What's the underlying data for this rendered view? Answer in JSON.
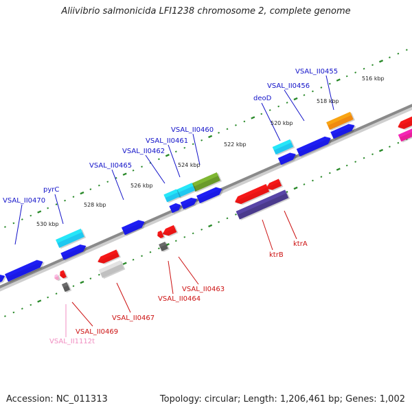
{
  "title": "Aliivibrio salmonicida LFI1238 chromosome 2, complete genome",
  "footer": {
    "accession": "Accession: NC_011313",
    "summary": "Topology: circular; Length: 1,206,461 bp; Genes: 1,002"
  },
  "colors": {
    "background": "#ffffff",
    "backbone": "#8a8a8a",
    "tick": "#2a8a2a",
    "label_forward": "#1010c8",
    "label_reverse": "#cc1010",
    "label_rna": "#f08cc0",
    "blue_gene": "#1a1ae6",
    "red_gene": "#e81414",
    "cyan_gene": "#20c8f0",
    "olive_gene": "#6a9a2a",
    "orange_gene": "#f08a10",
    "purple_gene": "#4a3a8c",
    "magenta_gene": "#e8209a",
    "gray_gene": "#5a5a5a",
    "lightgray_gene": "#c0c0c0",
    "pink_gene": "#f5a0c8"
  },
  "scale_labels": [
    "516 kbp",
    "518 kbp",
    "520 kbp",
    "522 kbp",
    "524 kbp",
    "526 kbp",
    "528 kbp",
    "530 kbp"
  ],
  "gene_labels_forward": [
    "VSAL_II0455",
    "VSAL_II0456",
    "deoD",
    "VSAL_II0460",
    "VSAL_II0461",
    "VSAL_II0462",
    "VSAL_II0465",
    "pyrC",
    "VSAL_II0470"
  ],
  "gene_labels_reverse": [
    "ktrA",
    "ktrB",
    "VSAL_II0463",
    "VSAL_II0464",
    "VSAL_II0467",
    "VSAL_II0469"
  ],
  "gene_labels_rna": [
    "VSAL_II1112t"
  ]
}
